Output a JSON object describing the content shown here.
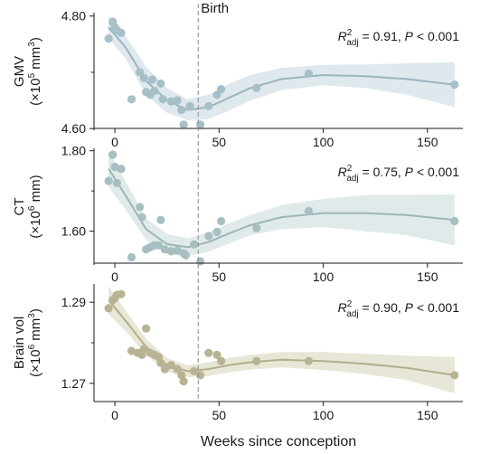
{
  "chart_data": {
    "type": "scatter",
    "xlabel": "Weeks since conception",
    "xticks": [
      0,
      50,
      100,
      150
    ],
    "xlim": [
      -10,
      167
    ],
    "birth": {
      "x": 40,
      "label": "Birth"
    },
    "panels": [
      {
        "id": "gmv",
        "ylabel_line1": "GMV",
        "ylabel_line2_pre": "(×10",
        "ylabel_line2_sup": "5",
        "ylabel_line2_post": " mm",
        "ylabel_line2_sup2": "3",
        "ylabel_line2_end": ")",
        "ylim": [
          4.597,
          4.806
        ],
        "yticks": [
          "4.60",
          "4.80"
        ],
        "ytick_values": [
          4.6,
          4.8
        ],
        "stat_r2": "R",
        "stat_sup": "2",
        "stat_sub": "adj",
        "stat_rest": " = 0.91, ",
        "stat_p": "P",
        "stat_end": " < 0.001",
        "color_point": "#a7bfc9",
        "color_line": "#9cb5bf",
        "color_band": "#dbe6ea",
        "points": [
          [
            -3,
            4.76
          ],
          [
            -1,
            4.79
          ],
          [
            0,
            4.78
          ],
          [
            1,
            4.775
          ],
          [
            3,
            4.77
          ],
          [
            8,
            4.652
          ],
          [
            12,
            4.7
          ],
          [
            14,
            4.69
          ],
          [
            15,
            4.665
          ],
          [
            17,
            4.66
          ],
          [
            18,
            4.687
          ],
          [
            19,
            4.667
          ],
          [
            22,
            4.68
          ],
          [
            23,
            4.652
          ],
          [
            27,
            4.648
          ],
          [
            30,
            4.65
          ],
          [
            32,
            4.633
          ],
          [
            33,
            4.607
          ],
          [
            36,
            4.64
          ],
          [
            41,
            4.607
          ],
          [
            45,
            4.64
          ],
          [
            49,
            4.66
          ],
          [
            51,
            4.67
          ],
          [
            68,
            4.672
          ],
          [
            93,
            4.698
          ],
          [
            163,
            4.678
          ]
        ],
        "fit": [
          [
            -3,
            4.78
          ],
          [
            5,
            4.745
          ],
          [
            15,
            4.685
          ],
          [
            25,
            4.65
          ],
          [
            35,
            4.633
          ],
          [
            45,
            4.638
          ],
          [
            55,
            4.655
          ],
          [
            65,
            4.672
          ],
          [
            80,
            4.688
          ],
          [
            100,
            4.695
          ],
          [
            120,
            4.693
          ],
          [
            140,
            4.688
          ],
          [
            163,
            4.678
          ]
        ],
        "band_upper": [
          [
            -3,
            4.8
          ],
          [
            5,
            4.765
          ],
          [
            15,
            4.71
          ],
          [
            25,
            4.672
          ],
          [
            35,
            4.652
          ],
          [
            45,
            4.66
          ],
          [
            55,
            4.68
          ],
          [
            65,
            4.695
          ],
          [
            80,
            4.708
          ],
          [
            100,
            4.713
          ],
          [
            120,
            4.714
          ],
          [
            140,
            4.716
          ],
          [
            163,
            4.718
          ]
        ],
        "band_lower": [
          [
            -3,
            4.76
          ],
          [
            5,
            4.725
          ],
          [
            15,
            4.66
          ],
          [
            25,
            4.628
          ],
          [
            35,
            4.615
          ],
          [
            45,
            4.617
          ],
          [
            55,
            4.632
          ],
          [
            65,
            4.65
          ],
          [
            80,
            4.668
          ],
          [
            100,
            4.677
          ],
          [
            120,
            4.672
          ],
          [
            140,
            4.66
          ],
          [
            163,
            4.638
          ]
        ]
      },
      {
        "id": "ct",
        "ylabel_line1": "CT",
        "ylabel_line2_pre": "(×10",
        "ylabel_line2_sup": "6",
        "ylabel_line2_post": " mm)",
        "ylabel_line2_sup2": "",
        "ylabel_line2_end": "",
        "ylim": [
          1.516,
          1.806
        ],
        "yticks": [
          "1.60",
          "1.80"
        ],
        "ytick_values": [
          1.6,
          1.8
        ],
        "stat_r2": "R",
        "stat_sup": "2",
        "stat_sub": "adj",
        "stat_rest": " = 0.75, ",
        "stat_p": "P",
        "stat_end": " < 0.001",
        "color_point": "#a7bfc1",
        "color_line": "#9db6b7",
        "color_band": "#dde8e8",
        "points": [
          [
            -3,
            1.725
          ],
          [
            -1,
            1.79
          ],
          [
            0,
            1.76
          ],
          [
            1,
            1.72
          ],
          [
            3,
            1.755
          ],
          [
            8,
            1.535
          ],
          [
            12,
            1.66
          ],
          [
            13,
            1.635
          ],
          [
            15,
            1.555
          ],
          [
            17,
            1.56
          ],
          [
            19,
            1.565
          ],
          [
            21,
            1.565
          ],
          [
            22,
            1.628
          ],
          [
            24,
            1.555
          ],
          [
            27,
            1.55
          ],
          [
            30,
            1.552
          ],
          [
            33,
            1.545
          ],
          [
            34,
            1.54
          ],
          [
            38,
            1.567
          ],
          [
            41,
            1.525
          ],
          [
            45,
            1.588
          ],
          [
            49,
            1.598
          ],
          [
            51,
            1.625
          ],
          [
            68,
            1.608
          ],
          [
            93,
            1.65
          ],
          [
            163,
            1.625
          ]
        ],
        "fit": [
          [
            -3,
            1.755
          ],
          [
            5,
            1.69
          ],
          [
            15,
            1.605
          ],
          [
            25,
            1.568
          ],
          [
            35,
            1.56
          ],
          [
            45,
            1.573
          ],
          [
            55,
            1.595
          ],
          [
            65,
            1.615
          ],
          [
            80,
            1.635
          ],
          [
            100,
            1.645
          ],
          [
            120,
            1.645
          ],
          [
            140,
            1.64
          ],
          [
            163,
            1.628
          ]
        ],
        "band_upper": [
          [
            -3,
            1.8
          ],
          [
            5,
            1.725
          ],
          [
            15,
            1.632
          ],
          [
            25,
            1.593
          ],
          [
            35,
            1.582
          ],
          [
            45,
            1.597
          ],
          [
            55,
            1.62
          ],
          [
            65,
            1.64
          ],
          [
            80,
            1.665
          ],
          [
            100,
            1.68
          ],
          [
            120,
            1.69
          ],
          [
            140,
            1.69
          ],
          [
            163,
            1.692
          ]
        ],
        "band_lower": [
          [
            -3,
            1.71
          ],
          [
            5,
            1.655
          ],
          [
            15,
            1.578
          ],
          [
            25,
            1.543
          ],
          [
            35,
            1.538
          ],
          [
            45,
            1.549
          ],
          [
            55,
            1.57
          ],
          [
            65,
            1.59
          ],
          [
            80,
            1.605
          ],
          [
            100,
            1.61
          ],
          [
            120,
            1.6
          ],
          [
            140,
            1.59
          ],
          [
            163,
            1.565
          ]
        ]
      },
      {
        "id": "brain",
        "ylabel_line1": "Brain vol",
        "ylabel_line2_pre": "(×10",
        "ylabel_line2_sup": "6",
        "ylabel_line2_post": " mm",
        "ylabel_line2_sup2": "3",
        "ylabel_line2_end": ")",
        "ylim": [
          1.2655,
          1.2945
        ],
        "yticks": [
          "1.29",
          "1.27"
        ],
        "ytick_values": [
          1.29,
          1.27
        ],
        "stat_r2": "R",
        "stat_sup": "2",
        "stat_sub": "adj",
        "stat_rest": " = 0.90, ",
        "stat_p": "P",
        "stat_end": " < 0.001",
        "color_point": "#b8b493",
        "color_line": "#b3ae8a",
        "color_band": "#e6e3d1",
        "points": [
          [
            -3,
            1.2885
          ],
          [
            -1,
            1.2905
          ],
          [
            0,
            1.291
          ],
          [
            1,
            1.2918
          ],
          [
            3,
            1.292
          ],
          [
            8,
            1.278
          ],
          [
            11,
            1.2775
          ],
          [
            13,
            1.277
          ],
          [
            14,
            1.2785
          ],
          [
            15,
            1.2835
          ],
          [
            17,
            1.2775
          ],
          [
            19,
            1.277
          ],
          [
            21,
            1.2765
          ],
          [
            22,
            1.275
          ],
          [
            24,
            1.2735
          ],
          [
            27,
            1.2745
          ],
          [
            30,
            1.2735
          ],
          [
            32,
            1.272
          ],
          [
            33,
            1.2705
          ],
          [
            38,
            1.273
          ],
          [
            41,
            1.272
          ],
          [
            45,
            1.2775
          ],
          [
            49,
            1.277
          ],
          [
            51,
            1.2755
          ],
          [
            68,
            1.2755
          ],
          [
            93,
            1.2755
          ],
          [
            163,
            1.272
          ]
        ],
        "fit": [
          [
            -3,
            1.2905
          ],
          [
            5,
            1.2855
          ],
          [
            15,
            1.279
          ],
          [
            25,
            1.2745
          ],
          [
            35,
            1.273
          ],
          [
            45,
            1.2735
          ],
          [
            55,
            1.2745
          ],
          [
            65,
            1.2752
          ],
          [
            80,
            1.2758
          ],
          [
            100,
            1.2755
          ],
          [
            120,
            1.2748
          ],
          [
            140,
            1.2738
          ],
          [
            163,
            1.272
          ]
        ],
        "band_upper": [
          [
            -3,
            1.294
          ],
          [
            5,
            1.288
          ],
          [
            15,
            1.281
          ],
          [
            25,
            1.2762
          ],
          [
            35,
            1.2745
          ],
          [
            45,
            1.2752
          ],
          [
            55,
            1.2763
          ],
          [
            65,
            1.277
          ],
          [
            80,
            1.2777
          ],
          [
            100,
            1.2777
          ],
          [
            120,
            1.2773
          ],
          [
            140,
            1.2768
          ],
          [
            163,
            1.2765
          ]
        ],
        "band_lower": [
          [
            -3,
            1.287
          ],
          [
            5,
            1.283
          ],
          [
            15,
            1.277
          ],
          [
            25,
            1.2728
          ],
          [
            35,
            1.2715
          ],
          [
            45,
            1.2718
          ],
          [
            55,
            1.2727
          ],
          [
            65,
            1.2734
          ],
          [
            80,
            1.2739
          ],
          [
            100,
            1.2733
          ],
          [
            120,
            1.2723
          ],
          [
            140,
            1.2708
          ],
          [
            163,
            1.2675
          ]
        ]
      }
    ]
  }
}
